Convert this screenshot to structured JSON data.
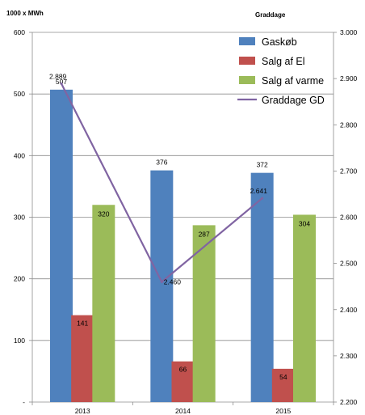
{
  "chart_data": {
    "type": "bar",
    "categories": [
      "2013",
      "2014",
      "2015"
    ],
    "series": [
      {
        "name": "Gaskøb",
        "kind": "bar",
        "axis": "left",
        "color": "#4F81BD",
        "values": [
          507,
          376,
          372
        ],
        "labels": [
          "507",
          "376",
          "372"
        ]
      },
      {
        "name": "Salg af El",
        "kind": "bar",
        "axis": "left",
        "color": "#C0504D",
        "values": [
          141,
          66,
          54
        ],
        "labels": [
          "141",
          "66",
          "54"
        ]
      },
      {
        "name": "Salg af varme",
        "kind": "bar",
        "axis": "left",
        "color": "#9BBB59",
        "values": [
          320,
          287,
          304
        ],
        "labels": [
          "320",
          "287",
          "304"
        ]
      },
      {
        "name": "Graddage GD",
        "kind": "line",
        "axis": "right",
        "color": "#8064A2",
        "values": [
          2889,
          2460,
          2641
        ],
        "labels": [
          "2.889",
          "2.460",
          "2.641"
        ]
      }
    ],
    "left_axis": {
      "unit_label": "1000 x MWh",
      "ylim": [
        0,
        600
      ],
      "tick_values": [
        0,
        100,
        200,
        300,
        400,
        500,
        600
      ],
      "tick_labels": [
        "-",
        "100",
        "200",
        "300",
        "400",
        "500",
        "600"
      ]
    },
    "right_axis": {
      "unit_label": "Graddage",
      "ylim": [
        2200,
        3000
      ],
      "tick_values": [
        2200,
        2300,
        2400,
        2500,
        2600,
        2700,
        2800,
        2900,
        3000
      ],
      "tick_labels": [
        "2.200",
        "2.300",
        "2.400",
        "2.500",
        "2.600",
        "2.700",
        "2.800",
        "2.900",
        "3.000"
      ]
    },
    "grid": true,
    "legend_position": "top-right"
  }
}
